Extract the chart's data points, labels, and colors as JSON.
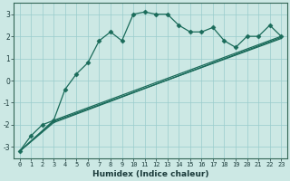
{
  "xlabel": "Humidex (Indice chaleur)",
  "bg_color": "#cce8e4",
  "grid_color": "#99cccc",
  "line_color": "#1a6b5a",
  "xlim": [
    -0.5,
    23.5
  ],
  "ylim": [
    -3.5,
    3.5
  ],
  "xticks": [
    0,
    1,
    2,
    3,
    4,
    5,
    6,
    7,
    8,
    9,
    10,
    11,
    12,
    13,
    14,
    15,
    16,
    17,
    18,
    19,
    20,
    21,
    22,
    23
  ],
  "yticks": [
    -3,
    -2,
    -1,
    0,
    1,
    2,
    3
  ],
  "series": [
    {
      "x": [
        0,
        1,
        2,
        3,
        4,
        5,
        6,
        7,
        8,
        9,
        10,
        11,
        12,
        13,
        14,
        15,
        16,
        17,
        18,
        19,
        20,
        21,
        22,
        23
      ],
      "y": [
        -3.2,
        -2.5,
        -2.0,
        -1.8,
        -0.4,
        0.3,
        0.8,
        1.8,
        2.2,
        1.8,
        3.0,
        3.1,
        3.0,
        3.0,
        2.5,
        2.2,
        2.2,
        2.4,
        1.8,
        1.5,
        2.0,
        2.0,
        2.5,
        2.0
      ],
      "marker": "D",
      "markersize": 2.5,
      "linewidth": 0.9
    },
    {
      "x": [
        0,
        3,
        23
      ],
      "y": [
        -3.2,
        -1.8,
        2.0
      ],
      "marker": null,
      "markersize": 0,
      "linewidth": 0.9
    },
    {
      "x": [
        0,
        3,
        23
      ],
      "y": [
        -3.2,
        -1.85,
        1.9
      ],
      "marker": null,
      "markersize": 0,
      "linewidth": 0.9
    },
    {
      "x": [
        0,
        3,
        23
      ],
      "y": [
        -3.2,
        -1.9,
        1.95
      ],
      "marker": null,
      "markersize": 0,
      "linewidth": 0.9
    }
  ],
  "tick_fontsize": 5.0,
  "xlabel_fontsize": 6.5
}
